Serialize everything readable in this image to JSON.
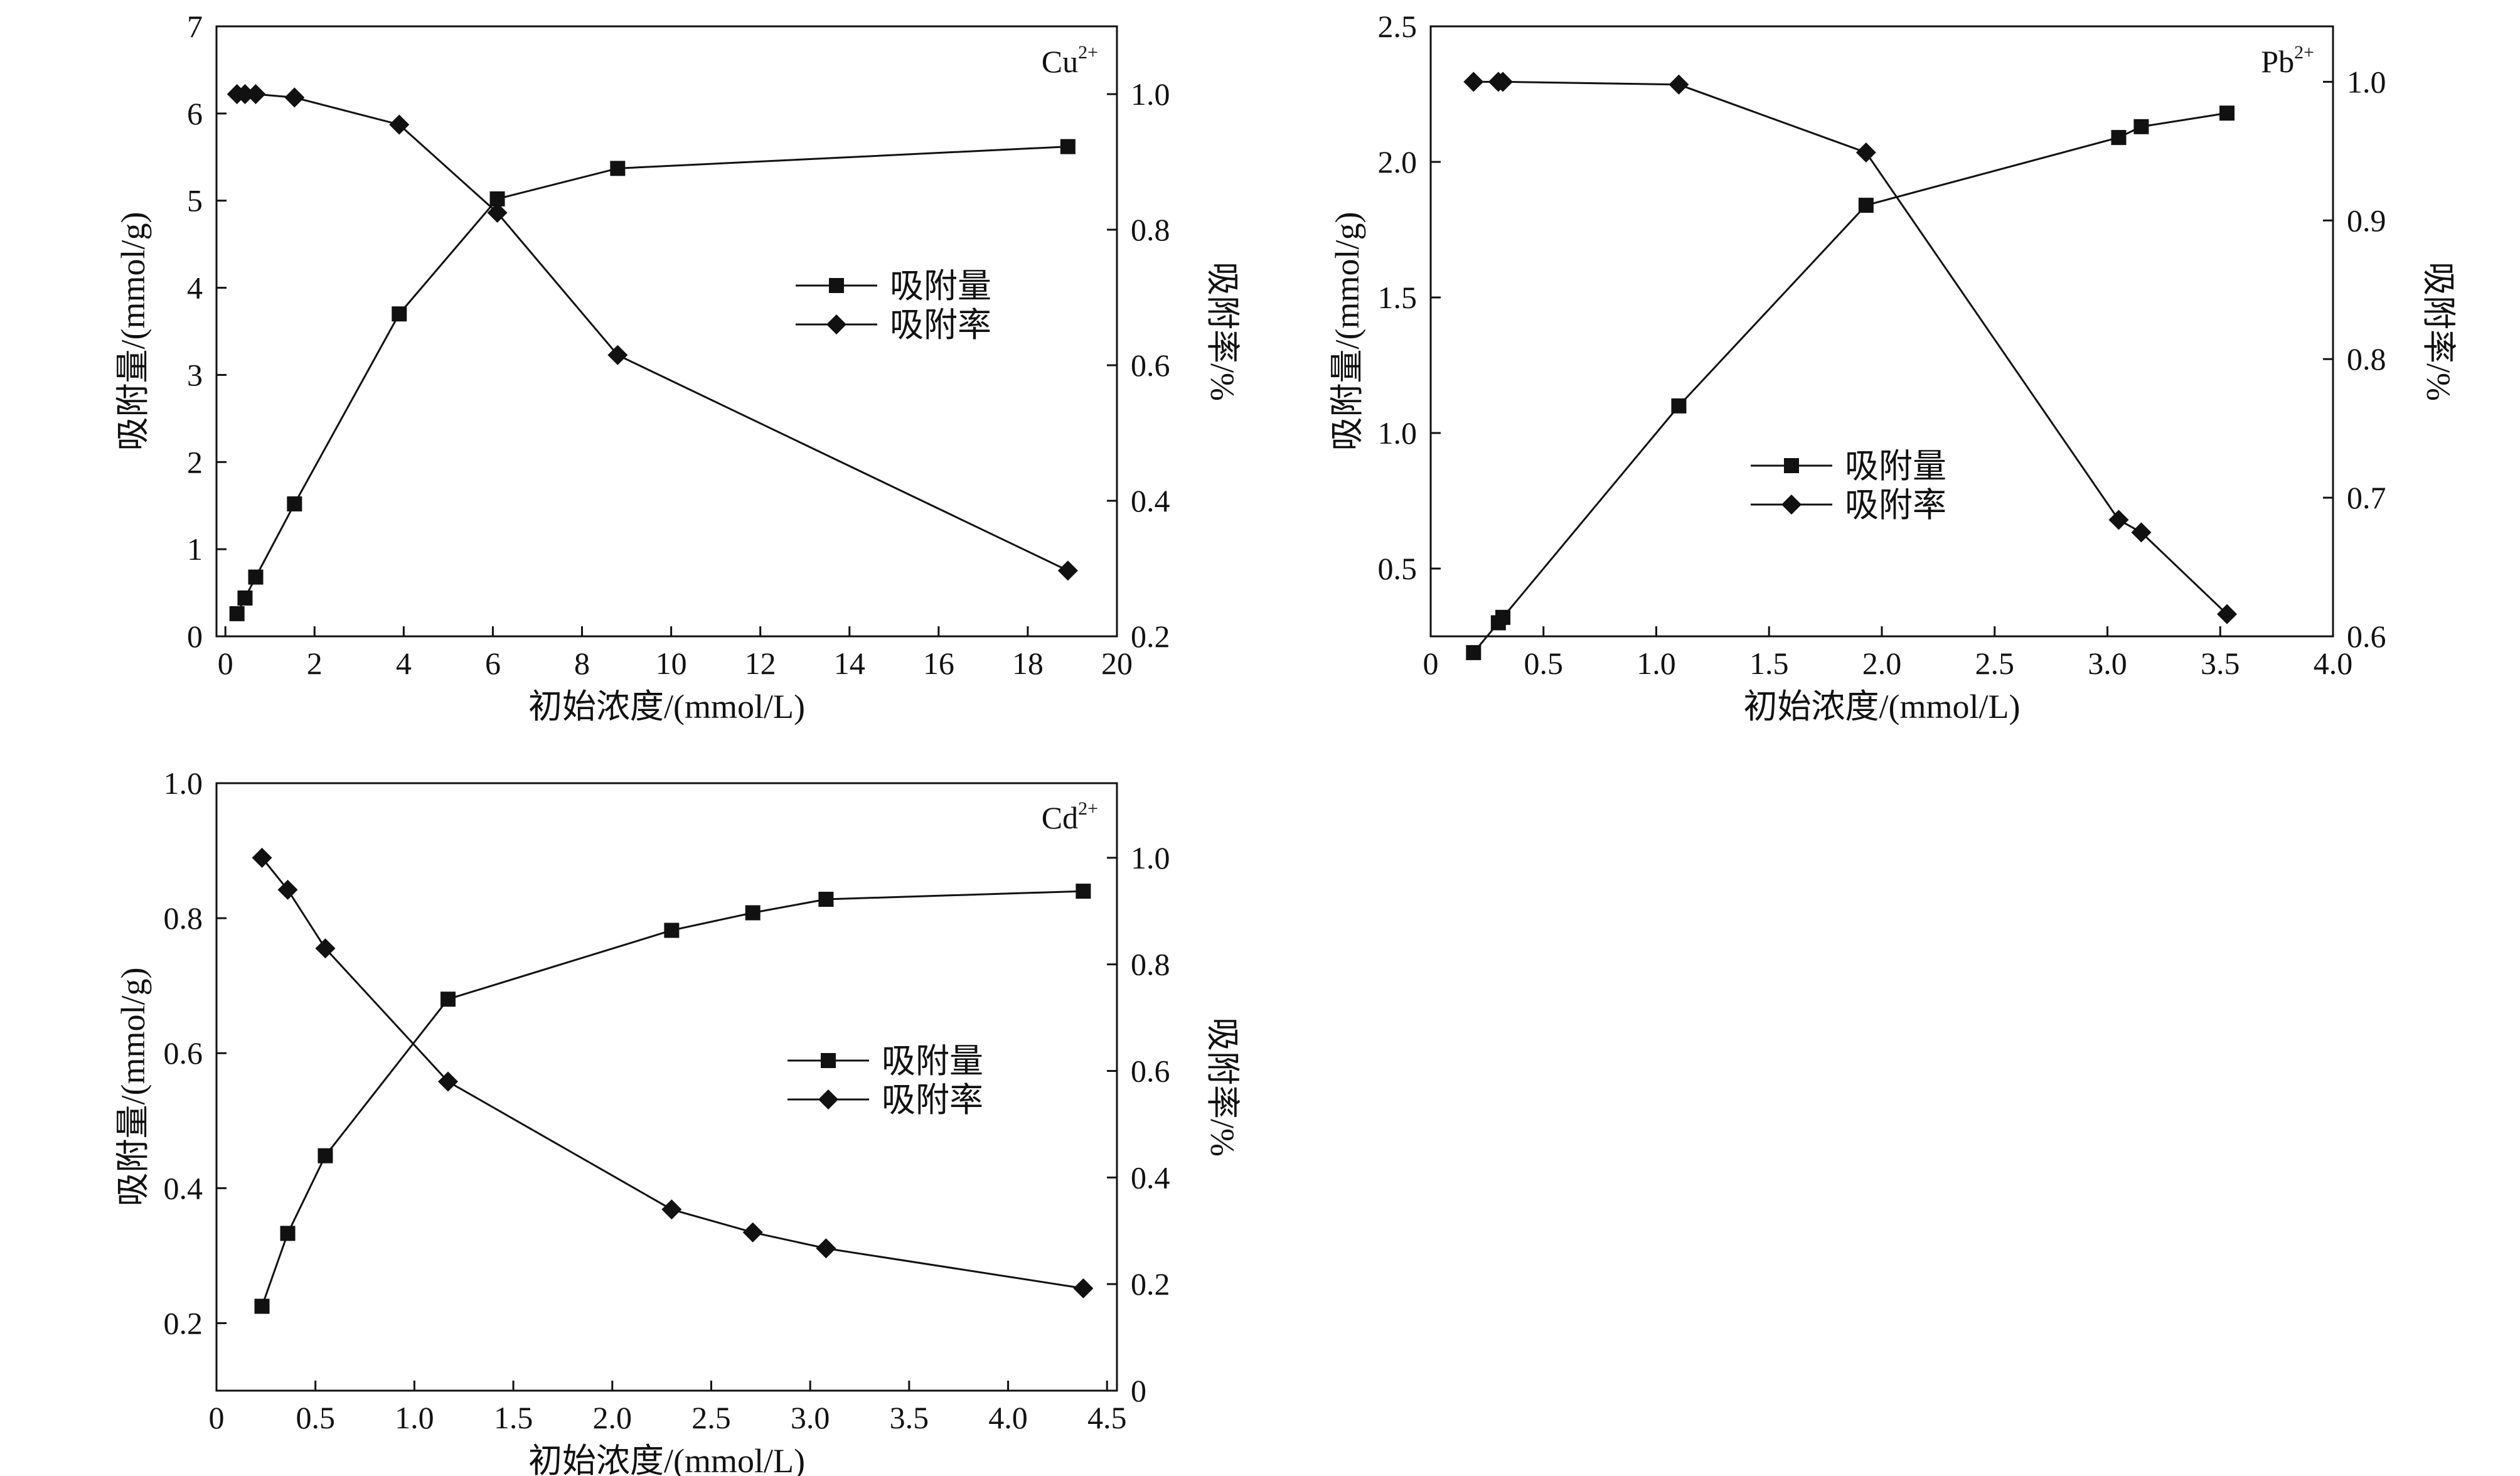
{
  "chart_data": [
    {
      "type": "line",
      "ion": "Cu",
      "ion_charge": "2+",
      "xlabel": "初始浓度/(mmol/L)",
      "ylabel": "吸附量/(mmol/g)",
      "ylabel_right": "吸附率/%",
      "xlim": [
        -0.2,
        20
      ],
      "ylim": [
        0,
        7
      ],
      "ylim_right": [
        0.2,
        1.1
      ],
      "x_ticks": [
        "0",
        "2",
        "4",
        "6",
        "8",
        "10",
        "12",
        "14",
        "16",
        "18",
        "20"
      ],
      "x_tick_values": [
        0,
        2,
        4,
        6,
        8,
        10,
        12,
        14,
        16,
        18,
        20
      ],
      "y_ticks": [
        "0",
        "1",
        "2",
        "3",
        "4",
        "5",
        "6",
        "7"
      ],
      "y_tick_values": [
        0,
        1,
        2,
        3,
        4,
        5,
        6,
        7
      ],
      "y_right_ticks": [
        "0.2",
        "0.4",
        "0.6",
        "0.8",
        "1.0"
      ],
      "y_right_tick_values": [
        0.2,
        0.4,
        0.6,
        0.8,
        1.0
      ],
      "legend_position": "right-middle",
      "series": [
        {
          "name": "吸附量",
          "axis": "left",
          "marker": "square",
          "x": [
            0.26,
            0.44,
            0.68,
            1.55,
            3.9,
            6.1,
            8.8,
            18.9
          ],
          "y": [
            0.26,
            0.44,
            0.68,
            1.52,
            3.7,
            5.02,
            5.37,
            5.62
          ]
        },
        {
          "name": "吸附率",
          "axis": "right",
          "marker": "diamond",
          "x": [
            0.26,
            0.44,
            0.68,
            1.55,
            3.9,
            6.1,
            8.8,
            18.9
          ],
          "y": [
            1.0,
            1.0,
            1.0,
            0.995,
            0.955,
            0.825,
            0.615,
            0.297
          ]
        }
      ]
    },
    {
      "type": "line",
      "ion": "Pb",
      "ion_charge": "2+",
      "xlabel": "初始浓度/(mmol/L)",
      "ylabel": "吸附量/(mmol/g)",
      "ylabel_right": "吸附率/%",
      "xlim": [
        0,
        4.0
      ],
      "ylim": [
        0.25,
        2.5
      ],
      "ylim_right": [
        0.6,
        1.04
      ],
      "x_ticks": [
        "0",
        "0.5",
        "1.0",
        "1.5",
        "2.0",
        "2.5",
        "3.0",
        "3.5",
        "4.0"
      ],
      "x_tick_values": [
        0,
        0.5,
        1.0,
        1.5,
        2.0,
        2.5,
        3.0,
        3.5,
        4.0
      ],
      "y_ticks": [
        "0.5",
        "1.0",
        "1.5",
        "2.0",
        "2.5"
      ],
      "y_tick_values": [
        0.5,
        1.0,
        1.5,
        2.0,
        2.5
      ],
      "y_right_ticks": [
        "0.6",
        "0.7",
        "0.8",
        "0.9",
        "1.0"
      ],
      "y_right_tick_values": [
        0.6,
        0.7,
        0.8,
        0.9,
        1.0
      ],
      "legend_position": "center-left",
      "series": [
        {
          "name": "吸附量",
          "axis": "left",
          "marker": "square",
          "x": [
            0.19,
            0.3,
            0.32,
            1.1,
            1.93,
            3.05,
            3.15,
            3.53
          ],
          "y": [
            0.19,
            0.3,
            0.32,
            1.1,
            1.84,
            2.09,
            2.13,
            2.18
          ]
        },
        {
          "name": "吸附率",
          "axis": "right",
          "marker": "diamond",
          "x": [
            0.19,
            0.3,
            0.32,
            1.1,
            1.93,
            3.05,
            3.15,
            3.53
          ],
          "y": [
            1.0,
            1.0,
            1.0,
            0.998,
            0.949,
            0.684,
            0.675,
            0.616
          ]
        }
      ]
    },
    {
      "type": "line",
      "ion": "Cd",
      "ion_charge": "2+",
      "xlabel": "初始浓度/(mmol/L)",
      "ylabel": "吸附量/(mmol/g)",
      "ylabel_right": "吸附率/%",
      "xlim": [
        0,
        4.55
      ],
      "ylim": [
        0.1,
        1.0
      ],
      "ylim_right": [
        0,
        1.14
      ],
      "x_ticks": [
        "0",
        "0.5",
        "1.0",
        "1.5",
        "2.0",
        "2.5",
        "3.0",
        "3.5",
        "4.0",
        "4.5"
      ],
      "x_tick_values": [
        0,
        0.5,
        1.0,
        1.5,
        2.0,
        2.5,
        3.0,
        3.5,
        4.0,
        4.5
      ],
      "y_ticks": [
        "0.2",
        "0.4",
        "0.6",
        "0.8",
        "1.0"
      ],
      "y_tick_values": [
        0.2,
        0.4,
        0.6,
        0.8,
        1.0
      ],
      "y_right_ticks": [
        "0",
        "0.2",
        "0.4",
        "0.6",
        "0.8",
        "1.0"
      ],
      "y_right_tick_values": [
        0,
        0.2,
        0.4,
        0.6,
        0.8,
        1.0
      ],
      "legend_position": "right-middle",
      "series": [
        {
          "name": "吸附量",
          "axis": "left",
          "marker": "square",
          "x": [
            0.23,
            0.36,
            0.55,
            1.17,
            2.3,
            2.71,
            3.08,
            4.38
          ],
          "y": [
            0.225,
            0.333,
            0.448,
            0.68,
            0.782,
            0.808,
            0.828,
            0.84
          ]
        },
        {
          "name": "吸附率",
          "axis": "right",
          "marker": "diamond",
          "x": [
            0.23,
            0.36,
            0.55,
            1.17,
            2.3,
            2.71,
            3.08,
            4.38
          ],
          "y": [
            1.0,
            0.94,
            0.83,
            0.58,
            0.34,
            0.297,
            0.267,
            0.192
          ]
        }
      ]
    }
  ]
}
